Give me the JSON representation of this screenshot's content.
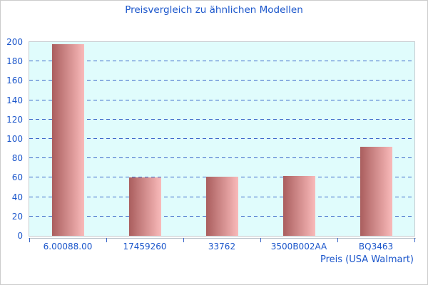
{
  "chart_data": {
    "type": "bar",
    "title": "Preisvergleich zu ähnlichen Modellen",
    "categories": [
      "6.00088.00",
      "17459260",
      "33762",
      "3500B002AA",
      "BQ3463"
    ],
    "values": [
      198,
      60.5,
      61,
      61.5,
      92
    ],
    "xlabel": "Preis (USA Walmart)",
    "ylabel": "",
    "ylim": [
      0,
      200
    ],
    "ytick_step": 20,
    "ytick_labels": [
      "0",
      "20",
      "40",
      "60",
      "80",
      "100",
      "120",
      "140",
      "160",
      "180",
      "200"
    ],
    "grid": "horizontal-dashed",
    "legend": "none",
    "colors": {
      "title_text": "#1b56cb",
      "axis_text": "#1b56cb",
      "gridline": "#3a66c8",
      "plot_background": "#e0fcfc",
      "plot_border": "#c6ccd0",
      "bar_gradient_start": "#aa5e5e",
      "bar_gradient_end": "#f9baba",
      "axis_line": "#b9c2c9",
      "tick": "#3a66c8",
      "frame_border": "#cccccc",
      "page_background": "#ffffff"
    }
  }
}
